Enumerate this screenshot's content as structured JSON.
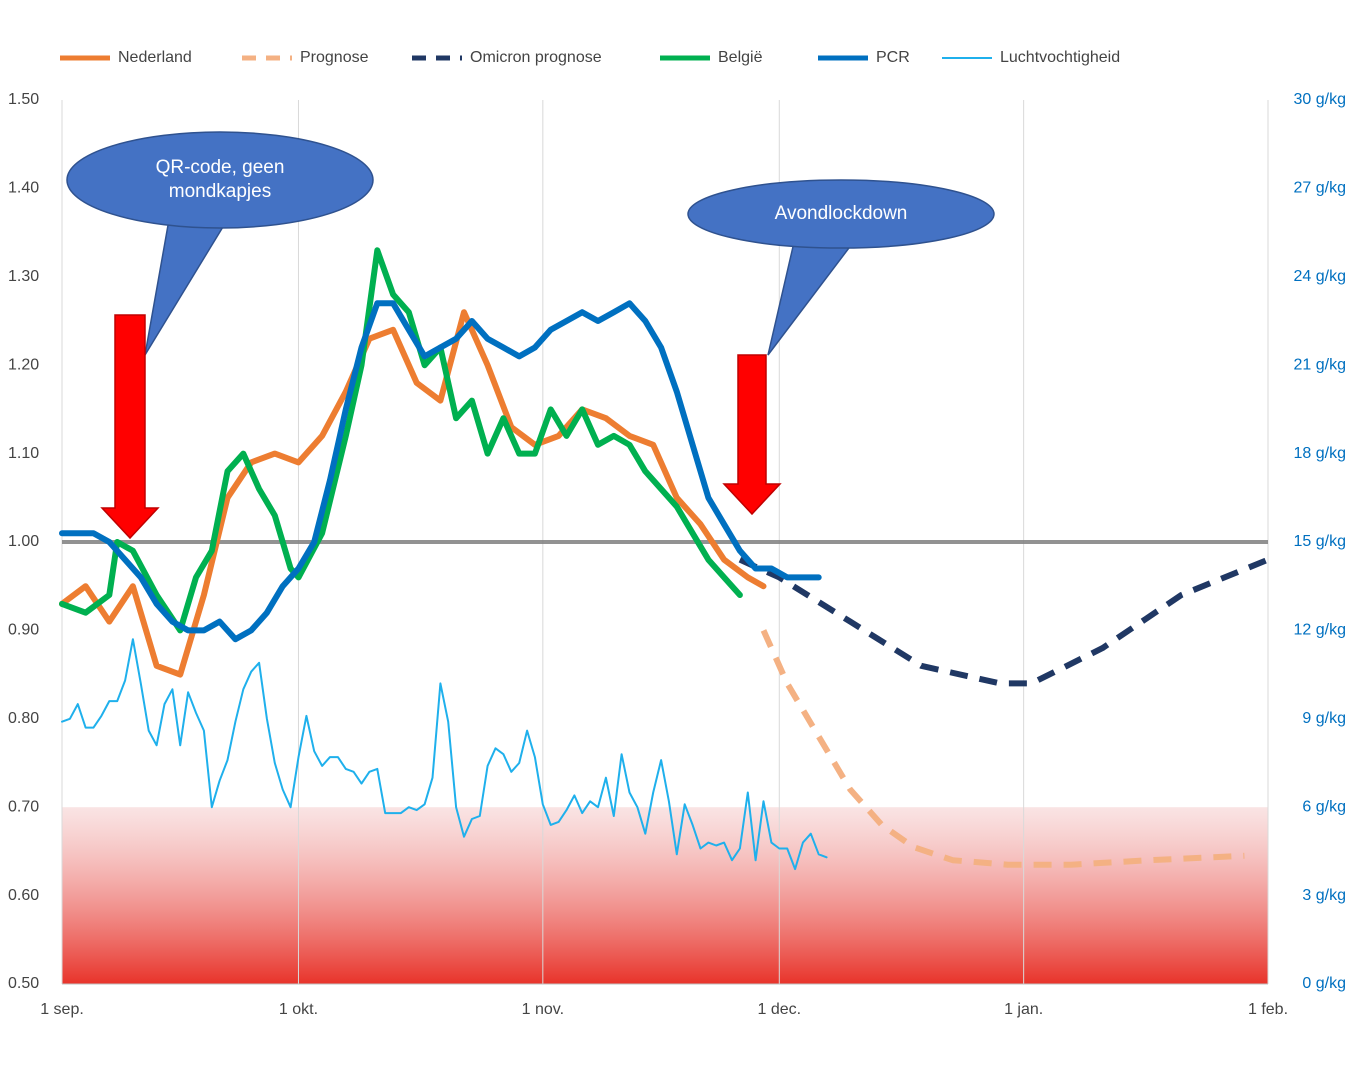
{
  "chart_data": {
    "type": "line",
    "xlim": [
      0,
      153
    ],
    "xticks": [
      {
        "value": 0,
        "label": "1 sep."
      },
      {
        "value": 30,
        "label": "1 okt."
      },
      {
        "value": 61,
        "label": "1 nov."
      },
      {
        "value": 91,
        "label": "1 dec."
      },
      {
        "value": 122,
        "label": "1 jan."
      },
      {
        "value": 153,
        "label": "1 feb."
      }
    ],
    "ylim": [
      0.5,
      1.5
    ],
    "yticks": [
      {
        "value": 0.5,
        "label": "0.50"
      },
      {
        "value": 0.6,
        "label": "0.60"
      },
      {
        "value": 0.7,
        "label": "0.70"
      },
      {
        "value": 0.8,
        "label": "0.80"
      },
      {
        "value": 0.9,
        "label": "0.90"
      },
      {
        "value": 1.0,
        "label": "1.00"
      },
      {
        "value": 1.1,
        "label": "1.10"
      },
      {
        "value": 1.2,
        "label": "1.20"
      },
      {
        "value": 1.3,
        "label": "1.30"
      },
      {
        "value": 1.4,
        "label": "1.40"
      },
      {
        "value": 1.5,
        "label": "1.50"
      }
    ],
    "y2lim": [
      0,
      30
    ],
    "y2ticks": [
      {
        "value": 0,
        "label": "0 g/kg"
      },
      {
        "value": 3,
        "label": "3 g/kg"
      },
      {
        "value": 6,
        "label": "6 g/kg"
      },
      {
        "value": 9,
        "label": "9 g/kg"
      },
      {
        "value": 12,
        "label": "12 g/kg"
      },
      {
        "value": 15,
        "label": "15 g/kg"
      },
      {
        "value": 18,
        "label": "18 g/kg"
      },
      {
        "value": 21,
        "label": "21 g/kg"
      },
      {
        "value": 24,
        "label": "24 g/kg"
      },
      {
        "value": 27,
        "label": "27 g/kg"
      },
      {
        "value": 30,
        "label": "30 g/kg"
      }
    ],
    "grid": "x",
    "reference_line": 1.0,
    "shaded_band": [
      0.5,
      0.7
    ],
    "legend": "top",
    "annotations": [
      "QR-code, geen mondkapjes",
      "Avondlockdown"
    ],
    "series": [
      {
        "name": "Nederland",
        "color": "#ed7d31",
        "dashed": false,
        "x": [
          0,
          3,
          6,
          9,
          12,
          15,
          18,
          21,
          24,
          27,
          30,
          33,
          36,
          39,
          42,
          45,
          48,
          51,
          54,
          57,
          60,
          63,
          66,
          69,
          72,
          75,
          78,
          81,
          84,
          87,
          89
        ],
        "values": [
          0.93,
          0.95,
          0.91,
          0.95,
          0.86,
          0.85,
          0.94,
          1.05,
          1.09,
          1.1,
          1.09,
          1.12,
          1.17,
          1.23,
          1.24,
          1.18,
          1.16,
          1.26,
          1.2,
          1.13,
          1.11,
          1.12,
          1.15,
          1.14,
          1.12,
          1.11,
          1.05,
          1.02,
          0.98,
          0.96,
          0.95
        ]
      },
      {
        "name": "Prognose",
        "color": "#f4b183",
        "dashed": true,
        "x": [
          89,
          92,
          96,
          100,
          104,
          108,
          113,
          120,
          128,
          138,
          150
        ],
        "values": [
          0.9,
          0.84,
          0.78,
          0.72,
          0.68,
          0.655,
          0.64,
          0.635,
          0.635,
          0.64,
          0.645
        ]
      },
      {
        "name": "Omicron prognose",
        "color": "#203864",
        "dashed": true,
        "x": [
          86,
          91,
          100,
          109,
          119,
          123,
          132,
          142,
          153
        ],
        "values": [
          0.98,
          0.96,
          0.91,
          0.86,
          0.84,
          0.84,
          0.88,
          0.94,
          0.98
        ]
      },
      {
        "name": "België",
        "color": "#00b050",
        "dashed": false,
        "x": [
          0,
          3,
          6,
          7,
          9,
          12,
          15,
          17,
          19,
          21,
          23,
          25,
          27,
          29,
          30,
          33,
          36,
          38,
          40,
          42,
          44,
          46,
          48,
          50,
          52,
          54,
          56,
          58,
          60,
          62,
          64,
          66,
          68,
          70,
          72,
          74,
          76,
          78,
          80,
          82,
          84,
          86
        ],
        "values": [
          0.93,
          0.92,
          0.94,
          1.0,
          0.99,
          0.94,
          0.9,
          0.96,
          0.99,
          1.08,
          1.1,
          1.06,
          1.03,
          0.97,
          0.96,
          1.01,
          1.12,
          1.2,
          1.33,
          1.28,
          1.26,
          1.2,
          1.22,
          1.14,
          1.16,
          1.1,
          1.14,
          1.1,
          1.1,
          1.15,
          1.12,
          1.15,
          1.11,
          1.12,
          1.11,
          1.08,
          1.06,
          1.04,
          1.01,
          0.98,
          0.96,
          0.94
        ]
      },
      {
        "name": "PCR",
        "color": "#0070c0",
        "dashed": false,
        "x": [
          0,
          2,
          4,
          6,
          8,
          10,
          12,
          14,
          16,
          18,
          20,
          22,
          24,
          26,
          28,
          30,
          32,
          34,
          36,
          38,
          40,
          42,
          44,
          46,
          48,
          50,
          52,
          54,
          56,
          58,
          60,
          62,
          64,
          66,
          68,
          70,
          72,
          74,
          76,
          78,
          80,
          82,
          84,
          86,
          88,
          90,
          92,
          94,
          96
        ],
        "values": [
          1.01,
          1.01,
          1.01,
          1.0,
          0.98,
          0.96,
          0.93,
          0.91,
          0.9,
          0.9,
          0.91,
          0.89,
          0.9,
          0.92,
          0.95,
          0.97,
          1.0,
          1.07,
          1.15,
          1.22,
          1.27,
          1.27,
          1.24,
          1.21,
          1.22,
          1.23,
          1.25,
          1.23,
          1.22,
          1.21,
          1.22,
          1.24,
          1.25,
          1.26,
          1.25,
          1.26,
          1.27,
          1.25,
          1.22,
          1.17,
          1.11,
          1.05,
          1.02,
          0.99,
          0.97,
          0.97,
          0.96,
          0.96,
          0.96
        ]
      },
      {
        "name": "Luchtvochtigheid",
        "color": "#1fb0ec",
        "dashed": false,
        "axis": "y2",
        "x": [
          0,
          1,
          2,
          3,
          4,
          5,
          6,
          7,
          8,
          9,
          10,
          11,
          12,
          13,
          14,
          15,
          16,
          17,
          18,
          19,
          20,
          21,
          22,
          23,
          24,
          25,
          26,
          27,
          28,
          29,
          30,
          31,
          32,
          33,
          34,
          35,
          36,
          37,
          38,
          39,
          40,
          41,
          42,
          43,
          44,
          45,
          46,
          47,
          48,
          49,
          50,
          51,
          52,
          53,
          54,
          55,
          56,
          57,
          58,
          59,
          60,
          61,
          62,
          63,
          64,
          65,
          66,
          67,
          68,
          69,
          70,
          71,
          72,
          73,
          74,
          75,
          76,
          77,
          78,
          79,
          80,
          81,
          82,
          83,
          84,
          85,
          86,
          87,
          88,
          89,
          90,
          91,
          92,
          93,
          94,
          95,
          96,
          97
        ],
        "values": [
          8.9,
          9.0,
          9.5,
          8.7,
          8.7,
          9.1,
          9.6,
          9.6,
          10.3,
          11.7,
          10.2,
          8.6,
          8.1,
          9.5,
          10.0,
          8.1,
          9.9,
          9.2,
          8.6,
          6.0,
          6.9,
          7.6,
          8.9,
          10.0,
          10.6,
          10.9,
          9.0,
          7.5,
          6.6,
          6.0,
          7.7,
          9.1,
          7.9,
          7.4,
          7.7,
          7.7,
          7.3,
          7.2,
          6.8,
          7.2,
          7.3,
          5.8,
          5.8,
          5.8,
          6.0,
          5.9,
          6.1,
          7.0,
          10.2,
          8.9,
          6.0,
          5.0,
          5.6,
          5.7,
          7.4,
          8.0,
          7.8,
          7.2,
          7.5,
          8.6,
          7.7,
          6.1,
          5.4,
          5.5,
          5.9,
          6.4,
          5.8,
          6.2,
          6.0,
          7.0,
          5.7,
          7.8,
          6.5,
          6.0,
          5.1,
          6.5,
          7.6,
          6.2,
          4.4,
          6.1,
          5.4,
          4.6,
          4.8,
          4.7,
          4.8,
          4.2,
          4.6,
          6.5,
          4.2,
          6.2,
          4.8,
          4.6,
          4.6,
          3.9,
          4.8,
          5.1,
          4.4,
          4.3
        ]
      }
    ]
  }
}
